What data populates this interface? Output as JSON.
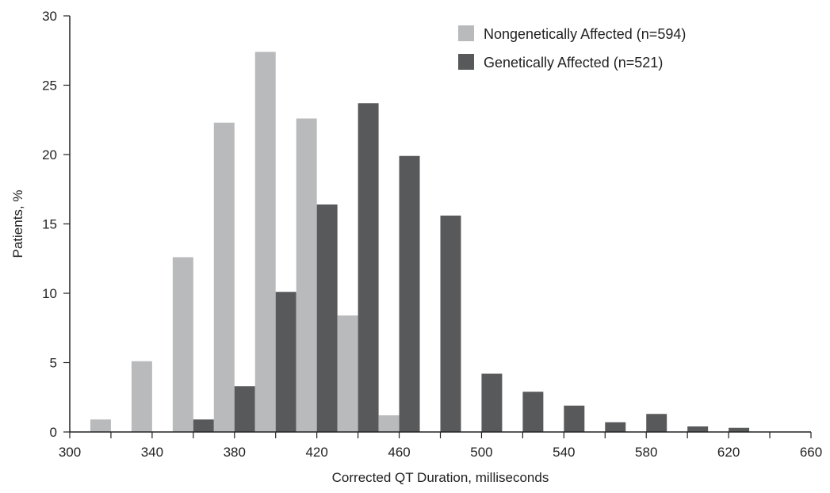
{
  "chart_data": {
    "type": "bar",
    "xlabel": "Corrected QT Duration, milliseconds",
    "ylabel": "Patients, %",
    "xlim": [
      300,
      660
    ],
    "ylim": [
      0,
      30
    ],
    "x_ticks": [
      300,
      340,
      380,
      420,
      460,
      500,
      540,
      580,
      620,
      660
    ],
    "y_ticks": [
      0,
      5,
      10,
      15,
      20,
      25,
      30
    ],
    "bin_width": 20,
    "legend_position": "top-right",
    "grid": false,
    "categories": [
      320,
      340,
      360,
      380,
      400,
      420,
      440,
      460,
      480,
      500,
      520,
      540,
      560,
      580,
      600,
      620
    ],
    "series": [
      {
        "name": "Nongenetically Affected (n=594)",
        "color": "#b9babc",
        "values": [
          0.9,
          5.1,
          12.6,
          22.3,
          27.4,
          22.6,
          8.4,
          1.2,
          null,
          null,
          null,
          null,
          null,
          null,
          null,
          null
        ]
      },
      {
        "name": "Genetically Affected (n=521)",
        "color": "#58595b",
        "values": [
          null,
          null,
          0.9,
          3.3,
          10.1,
          16.4,
          23.7,
          19.9,
          15.6,
          4.2,
          2.9,
          1.9,
          0.7,
          1.3,
          0.4,
          0.3
        ]
      }
    ]
  }
}
